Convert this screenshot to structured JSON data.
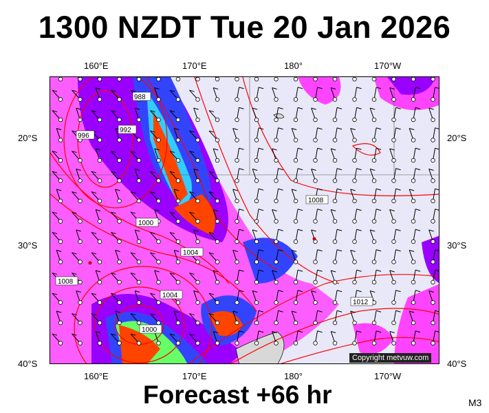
{
  "title": "1300 NZDT Tue 20 Jan 2026",
  "footer": "Forecast +66 hr",
  "model_code": "M3",
  "copyright": "Copyright metvuw.com",
  "top_lon_labels": [
    "160°E",
    "170°E",
    "180°",
    "170°W"
  ],
  "bottom_lon_labels": [
    "160°E",
    "170°E",
    "180°",
    "170°W"
  ],
  "left_lat_labels": [
    "20°S",
    "30°S",
    "40°S"
  ],
  "right_lat_labels": [
    "20°S",
    "30°S",
    "40°S"
  ],
  "isobar_labels": [
    "988",
    "992",
    "996",
    "1000",
    "1004",
    "1008",
    "1012",
    "1008",
    "1000",
    "1004"
  ],
  "colors": {
    "background": "#e8e8f8",
    "isobar": "#ff0000",
    "rain_light": "#ff33ff",
    "rain_mod": "#9900ff",
    "rain_blue": "#3333ff",
    "rain_cyan": "#33ccff",
    "rain_green": "#66ff66",
    "rain_heavy": "#ff4400",
    "land": "#d8d8d8"
  }
}
